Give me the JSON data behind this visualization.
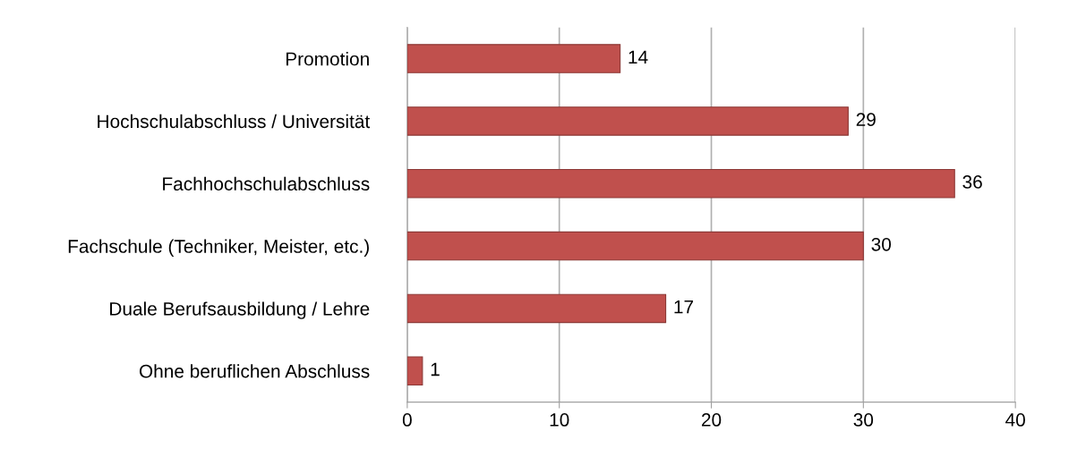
{
  "chart_data": {
    "type": "bar",
    "orientation": "horizontal",
    "categories": [
      "Promotion",
      "Hochschulabschluss / Universität",
      "Fachhochschulabschluss",
      "Fachschule (Techniker, Meister, etc.)",
      "Duale Berufsausbildung / Lehre",
      "Ohne beruflichen Abschluss"
    ],
    "values": [
      14,
      29,
      36,
      30,
      17,
      1
    ],
    "color": "#c0504d",
    "xlim": [
      0,
      40
    ],
    "xticks": [
      0,
      10,
      20,
      30,
      40
    ],
    "grid": "x",
    "data_labels": true
  }
}
